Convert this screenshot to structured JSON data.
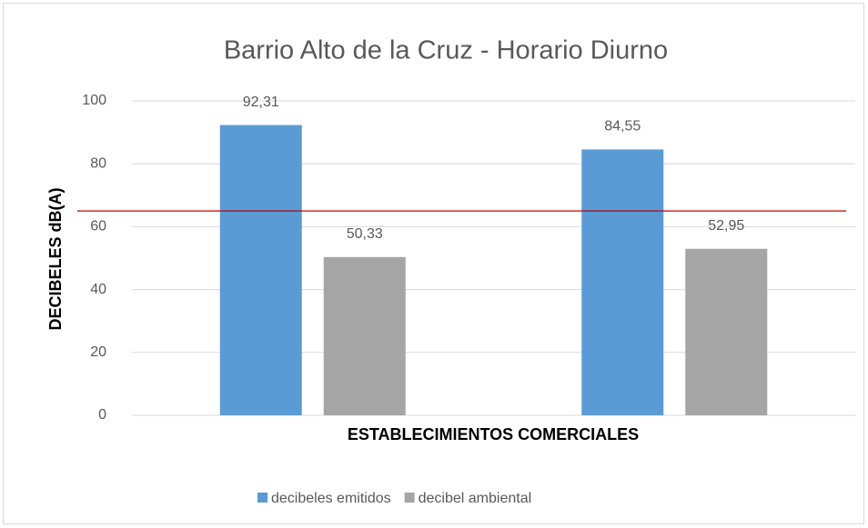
{
  "chart_data": {
    "type": "bar",
    "title": "Barrio Alto de la Cruz - Horario Diurno",
    "x_label": "ESTABLECIMIENTOS COMERCIALES",
    "y_label": "DECIBELES dB(A)",
    "categories": [
      null,
      null
    ],
    "series": [
      {
        "name": "decibeles emitidos",
        "color": "#5b9bd5",
        "values": [
          92.31,
          84.55
        ],
        "value_labels": [
          "92,31",
          "84,55"
        ]
      },
      {
        "name": "decibel ambiental",
        "color": "#a5a5a5",
        "values": [
          50.33,
          52.95
        ],
        "value_labels": [
          "50,33",
          "52,95"
        ]
      }
    ],
    "reference_line": {
      "value": 65,
      "color": "#c00000"
    },
    "ylim": [
      0,
      100
    ],
    "yticks": [
      0,
      20,
      40,
      60,
      80,
      100
    ],
    "grid": true,
    "legend": "bottom"
  }
}
